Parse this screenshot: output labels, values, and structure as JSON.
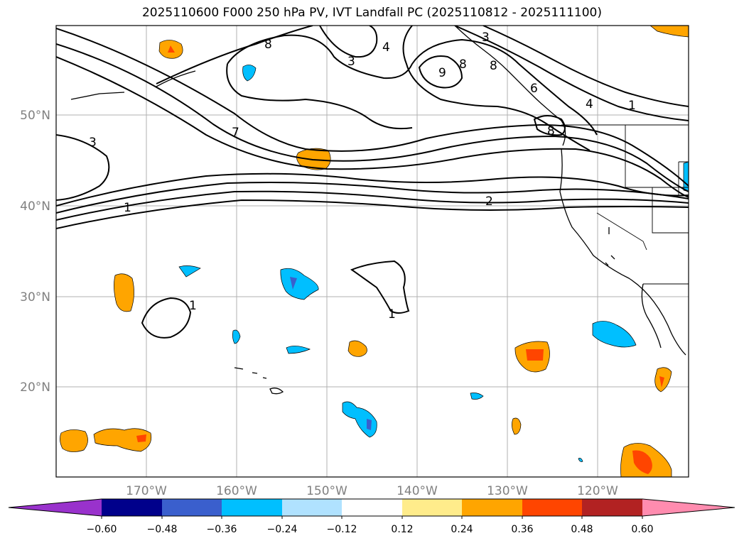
{
  "title": "2025110600 F000 250 hPa PV, IVT Landfall PC (2025110812 - 2025111100)",
  "map": {
    "lon_labels": [
      "170°W",
      "160°W",
      "150°W",
      "140°W",
      "130°W",
      "120°W"
    ],
    "lat_labels": [
      "50°N",
      "40°N",
      "30°N",
      "20°N"
    ],
    "contour_labels": [
      "9",
      "8",
      "7",
      "6",
      "4",
      "4",
      "3",
      "3",
      "3",
      "2",
      "1",
      "1",
      "1",
      "1",
      "8",
      "8",
      "8"
    ]
  },
  "colorbar": {
    "tick_labels": [
      "−0.60",
      "−0.48",
      "−0.36",
      "−0.24",
      "−0.12",
      "0.12",
      "0.24",
      "0.36",
      "0.48",
      "0.60"
    ],
    "colors": [
      "#9932cc",
      "#00008b",
      "#3a5fcd",
      "#00bfff",
      "#b0e2ff",
      "#ffffff",
      "#ffec8b",
      "#ffa500",
      "#ff4500",
      "#b22222",
      "#ff8caf"
    ]
  }
}
